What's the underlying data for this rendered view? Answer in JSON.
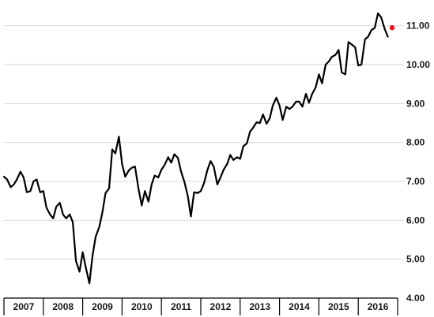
{
  "chart_data": {
    "type": "line",
    "title": "",
    "xlabel": "",
    "ylabel": "",
    "x_tick_labels": [
      "2007",
      "2008",
      "2009",
      "2010",
      "2011",
      "2012",
      "2013",
      "2014",
      "2015",
      "2016"
    ],
    "y_tick_labels": [
      "4.00",
      "5.00",
      "6.00",
      "7.00",
      "8.00",
      "9.00",
      "10.00",
      "11.00"
    ],
    "ylim": [
      4.0,
      11.5
    ],
    "xlim": [
      2007.0,
      2017.0
    ],
    "grid": "horizontal",
    "legend": "none",
    "colors": {
      "line": "#000000",
      "last_point": "#e8141b",
      "grid": "#d9d9d9"
    },
    "series": [
      {
        "x": [
          2007.0,
          2007.08,
          2007.17,
          2007.25,
          2007.33,
          2007.42,
          2007.5,
          2007.58,
          2007.67,
          2007.75,
          2007.83,
          2007.92,
          2008.0,
          2008.08,
          2008.17,
          2008.25,
          2008.33,
          2008.42,
          2008.5,
          2008.58,
          2008.67,
          2008.75,
          2008.83,
          2008.92,
          2009.0,
          2009.08,
          2009.17,
          2009.25,
          2009.33,
          2009.42,
          2009.5,
          2009.58,
          2009.67,
          2009.75,
          2009.83,
          2009.92,
          2010.0,
          2010.08,
          2010.17,
          2010.25,
          2010.33,
          2010.42,
          2010.5,
          2010.58,
          2010.67,
          2010.75,
          2010.83,
          2010.92,
          2011.0,
          2011.08,
          2011.17,
          2011.25,
          2011.33,
          2011.42,
          2011.5,
          2011.58,
          2011.67,
          2011.75,
          2011.83,
          2011.92,
          2012.0,
          2012.08,
          2012.17,
          2012.25,
          2012.33,
          2012.42,
          2012.5,
          2012.58,
          2012.67,
          2012.75,
          2012.83,
          2012.92,
          2013.0,
          2013.08,
          2013.17,
          2013.25,
          2013.33,
          2013.42,
          2013.5,
          2013.58,
          2013.67,
          2013.75,
          2013.83,
          2013.92,
          2014.0,
          2014.08,
          2014.17,
          2014.25,
          2014.33,
          2014.42,
          2014.5,
          2014.58,
          2014.67,
          2014.75,
          2014.83,
          2014.92,
          2015.0,
          2015.08,
          2015.17,
          2015.25,
          2015.33,
          2015.42,
          2015.5,
          2015.58,
          2015.67,
          2015.75,
          2015.83,
          2015.92,
          2016.0,
          2016.08,
          2016.17,
          2016.25,
          2016.33,
          2016.42,
          2016.5,
          2016.58,
          2016.67,
          2016.75
        ],
        "values": [
          7.12,
          7.05,
          6.85,
          6.92,
          7.05,
          7.25,
          7.1,
          6.72,
          6.75,
          7.0,
          7.05,
          6.72,
          6.75,
          6.32,
          6.15,
          6.05,
          6.35,
          6.45,
          6.15,
          6.05,
          6.15,
          5.95,
          4.95,
          4.68,
          5.18,
          4.78,
          4.38,
          5.08,
          5.58,
          5.82,
          6.2,
          6.7,
          6.82,
          7.82,
          7.72,
          8.15,
          7.45,
          7.12,
          7.28,
          7.35,
          7.38,
          6.8,
          6.38,
          6.75,
          6.48,
          6.92,
          7.15,
          7.1,
          7.3,
          7.42,
          7.62,
          7.48,
          7.7,
          7.6,
          7.25,
          7.0,
          6.62,
          6.1,
          6.72,
          6.7,
          6.75,
          6.95,
          7.3,
          7.52,
          7.38,
          6.92,
          7.1,
          7.3,
          7.45,
          7.68,
          7.55,
          7.62,
          7.58,
          7.9,
          7.98,
          8.28,
          8.38,
          8.52,
          8.5,
          8.72,
          8.48,
          8.62,
          8.95,
          9.15,
          8.95,
          8.58,
          8.92,
          8.86,
          8.92,
          9.05,
          9.05,
          8.92,
          9.25,
          9.02,
          9.25,
          9.42,
          9.75,
          9.52,
          10.0,
          10.08,
          10.2,
          10.25,
          10.38,
          9.8,
          9.75,
          10.58,
          10.52,
          10.45,
          9.98,
          10.0,
          10.65,
          10.72,
          10.88,
          10.95,
          11.32,
          11.22,
          10.92,
          10.72
        ],
        "last_value": 10.95,
        "last_x": 2016.86
      }
    ]
  }
}
